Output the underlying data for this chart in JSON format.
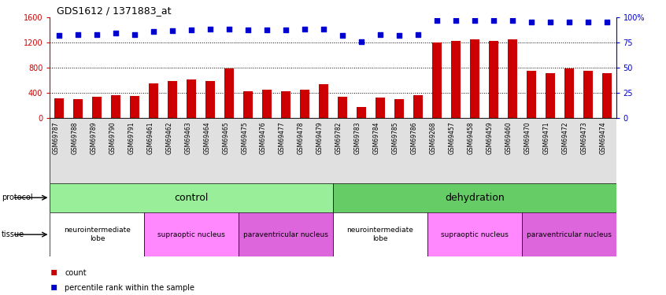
{
  "title": "GDS1612 / 1371883_at",
  "samples": [
    "GSM69787",
    "GSM69788",
    "GSM69789",
    "GSM69790",
    "GSM69791",
    "GSM69461",
    "GSM69462",
    "GSM69463",
    "GSM69464",
    "GSM69465",
    "GSM69475",
    "GSM69476",
    "GSM69477",
    "GSM69478",
    "GSM69479",
    "GSM69782",
    "GSM69783",
    "GSM69784",
    "GSM69785",
    "GSM69786",
    "GSM69268",
    "GSM69457",
    "GSM69458",
    "GSM69459",
    "GSM69460",
    "GSM69470",
    "GSM69471",
    "GSM69472",
    "GSM69473",
    "GSM69474"
  ],
  "counts": [
    320,
    305,
    345,
    370,
    350,
    550,
    590,
    620,
    590,
    795,
    425,
    450,
    430,
    455,
    545,
    340,
    175,
    330,
    295,
    365,
    1205,
    1235,
    1255,
    1225,
    1255,
    755,
    710,
    785,
    755,
    710
  ],
  "percentiles": [
    82,
    83,
    83,
    85,
    83,
    86,
    87,
    88,
    89,
    89,
    88,
    88,
    88,
    89,
    89,
    82,
    76,
    83,
    82,
    83,
    97,
    97,
    97,
    97,
    97,
    96,
    96,
    96,
    96,
    96
  ],
  "bar_color": "#cc0000",
  "dot_color": "#0000cc",
  "ylim_left": [
    0,
    1600
  ],
  "ylim_right": [
    0,
    100
  ],
  "yticks_left": [
    0,
    400,
    800,
    1200,
    1600
  ],
  "yticks_right": [
    0,
    25,
    50,
    75,
    100
  ],
  "grid_lines": [
    400,
    800,
    1200
  ],
  "protocol_groups": [
    {
      "label": "control",
      "start": 0,
      "end": 14,
      "color": "#99ee99"
    },
    {
      "label": "dehydration",
      "start": 15,
      "end": 29,
      "color": "#66cc66"
    }
  ],
  "tissue_groups": [
    {
      "label": "neurointermediate\nlobe",
      "start": 0,
      "end": 4,
      "color": "#ffffff"
    },
    {
      "label": "supraoptic nucleus",
      "start": 5,
      "end": 9,
      "color": "#ff88ff"
    },
    {
      "label": "paraventricular nucleus",
      "start": 10,
      "end": 14,
      "color": "#dd66dd"
    },
    {
      "label": "neurointermediate\nlobe",
      "start": 15,
      "end": 19,
      "color": "#ffffff"
    },
    {
      "label": "supraoptic nucleus",
      "start": 20,
      "end": 24,
      "color": "#ff88ff"
    },
    {
      "label": "paraventricular nucleus",
      "start": 25,
      "end": 29,
      "color": "#dd66dd"
    }
  ],
  "bg_color": "#ffffff",
  "bar_width": 0.5
}
